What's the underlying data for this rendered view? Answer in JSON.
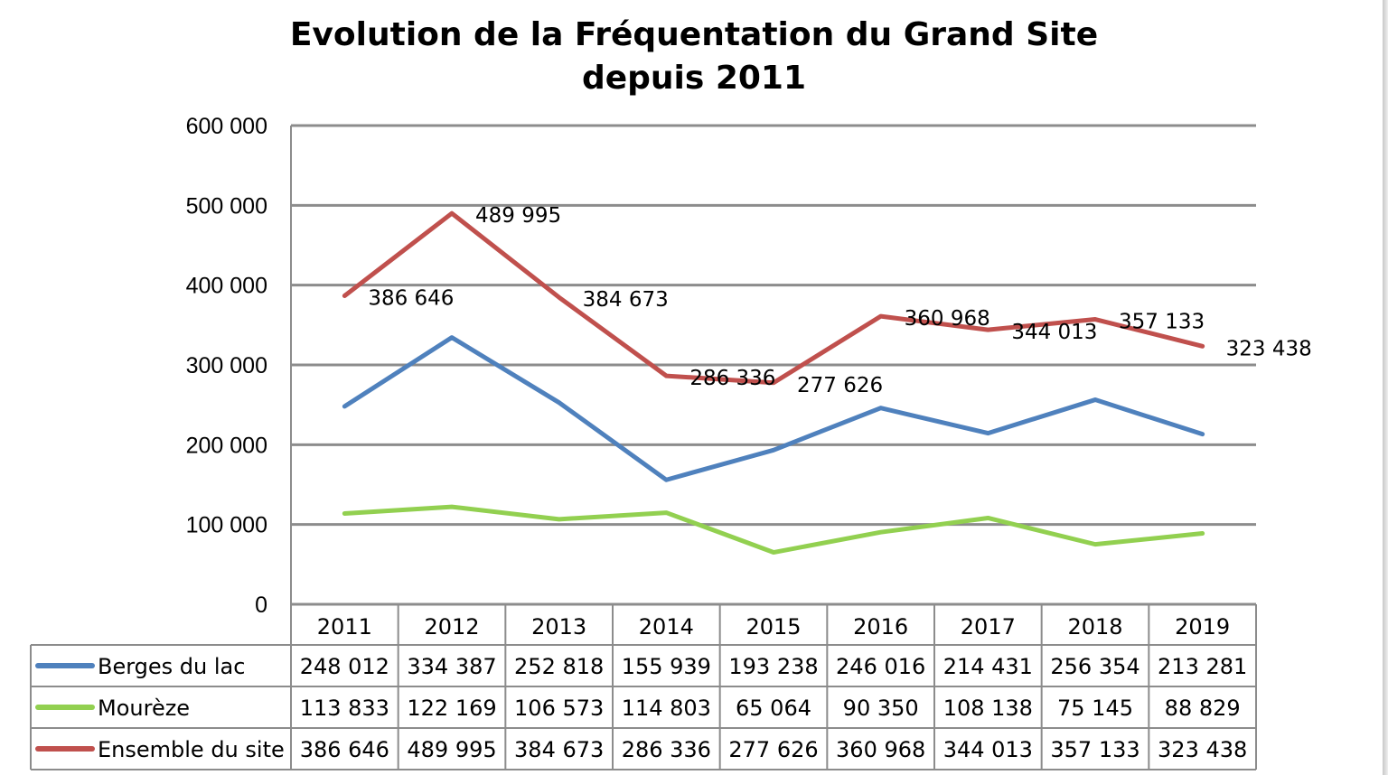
{
  "chart_data": {
    "type": "line",
    "title": [
      "Evolution de la Fréquentation du Grand Site",
      "depuis 2011"
    ],
    "categories": [
      "2011",
      "2012",
      "2013",
      "2014",
      "2015",
      "2016",
      "2017",
      "2018",
      "2019"
    ],
    "ylim": [
      0,
      600000
    ],
    "yticks": [
      0,
      100000,
      200000,
      300000,
      400000,
      500000,
      600000
    ],
    "ytick_labels": [
      "0",
      "100 000",
      "200 000",
      "300 000",
      "400 000",
      "500 000",
      "600 000"
    ],
    "grid": true,
    "legend": "data-table",
    "series": [
      {
        "name": "Berges du lac",
        "color": "#4f81bd",
        "values": [
          248012,
          334387,
          252818,
          155939,
          193238,
          246016,
          214431,
          256354,
          213281
        ],
        "value_labels": [
          "248 012",
          "334 387",
          "252 818",
          "155 939",
          "193 238",
          "246 016",
          "214 431",
          "256 354",
          "213 281"
        ],
        "show_data_labels": false
      },
      {
        "name": "Mourèze",
        "color": "#92d050",
        "values": [
          113833,
          122169,
          106573,
          114803,
          65064,
          90350,
          108138,
          75145,
          88829
        ],
        "value_labels": [
          "113 833",
          "122 169",
          "106 573",
          "114 803",
          "65 064",
          "90 350",
          "108 138",
          "75 145",
          "88 829"
        ],
        "show_data_labels": false
      },
      {
        "name": "Ensemble du site",
        "color": "#c0504d",
        "values": [
          386646,
          489995,
          384673,
          286336,
          277626,
          360968,
          344013,
          357133,
          323438
        ],
        "value_labels": [
          "386 646",
          "489 995",
          "384 673",
          "286 336",
          "277 626",
          "360 968",
          "344 013",
          "357 133",
          "323 438"
        ],
        "show_data_labels": true
      }
    ]
  }
}
